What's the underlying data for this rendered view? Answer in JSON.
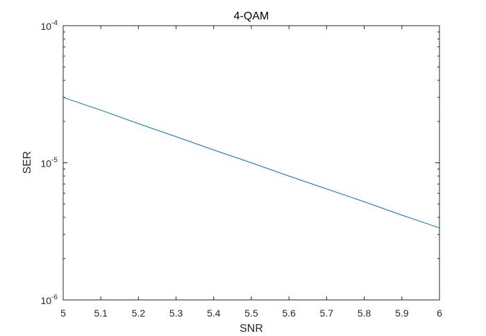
{
  "chart_data": {
    "type": "line",
    "title": "4-QAM",
    "xlabel": "SNR",
    "ylabel": "SER",
    "xlim": [
      5,
      6
    ],
    "ylim": [
      1e-06,
      0.0001
    ],
    "yscale": "log",
    "grid": false,
    "x_ticks": [
      5,
      5.1,
      5.2,
      5.3,
      5.4,
      5.5,
      5.6,
      5.7,
      5.8,
      5.9,
      6
    ],
    "x_tick_labels": [
      "5",
      "5.1",
      "5.2",
      "5.3",
      "5.4",
      "5.5",
      "5.6",
      "5.7",
      "5.8",
      "5.9",
      "6"
    ],
    "y_ticks": [
      {
        "value": 0.0001,
        "base": "10",
        "exp": "-4"
      },
      {
        "value": 1e-05,
        "base": "10",
        "exp": "-5"
      },
      {
        "value": 1e-06,
        "base": "10",
        "exp": "-6"
      }
    ],
    "series": [
      {
        "color": "#0072bd",
        "x": [
          5,
          5.1,
          5.2,
          5.3,
          5.4,
          5.5,
          5.6,
          5.7,
          5.8,
          5.9,
          6
        ],
        "y": [
          3e-05,
          2.42e-05,
          1.93e-05,
          1.55e-05,
          1.24e-05,
          1e-05,
          8e-06,
          6.45e-06,
          5.2e-06,
          4.15e-06,
          3.35e-06
        ]
      }
    ]
  }
}
